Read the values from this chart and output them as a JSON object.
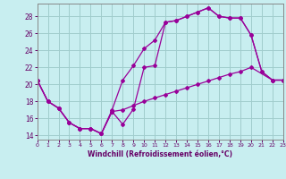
{
  "bg_color": "#c8eef0",
  "grid_color": "#a0cccc",
  "line_color": "#990099",
  "xlabel": "Windchill (Refroidissement éolien,°C)",
  "xlim": [
    0,
    23
  ],
  "ylim": [
    13.5,
    29.5
  ],
  "xticks": [
    0,
    1,
    2,
    3,
    4,
    5,
    6,
    7,
    8,
    9,
    10,
    11,
    12,
    13,
    14,
    15,
    16,
    17,
    18,
    19,
    20,
    21,
    22,
    23
  ],
  "yticks": [
    14,
    16,
    18,
    20,
    22,
    24,
    26,
    28
  ],
  "line1_x": [
    0,
    1,
    2,
    3,
    4,
    5,
    6,
    7,
    8,
    9,
    10,
    11,
    12,
    13,
    14,
    15,
    16,
    17,
    18,
    19,
    20,
    21,
    22,
    23
  ],
  "line1_y": [
    20.5,
    18.0,
    17.2,
    15.5,
    14.8,
    14.8,
    14.2,
    17.0,
    20.5,
    22.2,
    24.2,
    25.2,
    27.3,
    27.5,
    28.0,
    28.5,
    29.0,
    28.0,
    27.8,
    27.8,
    25.8,
    21.5,
    20.5,
    20.5
  ],
  "line2_x": [
    0,
    1,
    2,
    3,
    4,
    5,
    6,
    7,
    8,
    9,
    10,
    11,
    12,
    13,
    14,
    15,
    16,
    17,
    18,
    19,
    20,
    21,
    22,
    23
  ],
  "line2_y": [
    20.5,
    18.0,
    17.2,
    15.5,
    14.8,
    14.8,
    14.2,
    16.8,
    15.3,
    17.1,
    22.0,
    22.2,
    27.3,
    27.5,
    28.0,
    28.5,
    29.0,
    28.0,
    27.8,
    27.8,
    25.8,
    21.5,
    20.5,
    20.5
  ],
  "line3_x": [
    0,
    1,
    2,
    3,
    4,
    5,
    6,
    7,
    8,
    9,
    10,
    11,
    12,
    13,
    14,
    15,
    16,
    17,
    18,
    19,
    20,
    22,
    23
  ],
  "line3_y": [
    20.5,
    18.0,
    17.2,
    15.5,
    14.8,
    14.8,
    14.2,
    16.8,
    17.0,
    17.5,
    18.0,
    18.4,
    18.8,
    19.2,
    19.6,
    20.0,
    20.4,
    20.8,
    21.2,
    21.5,
    22.0,
    20.5,
    20.5
  ]
}
